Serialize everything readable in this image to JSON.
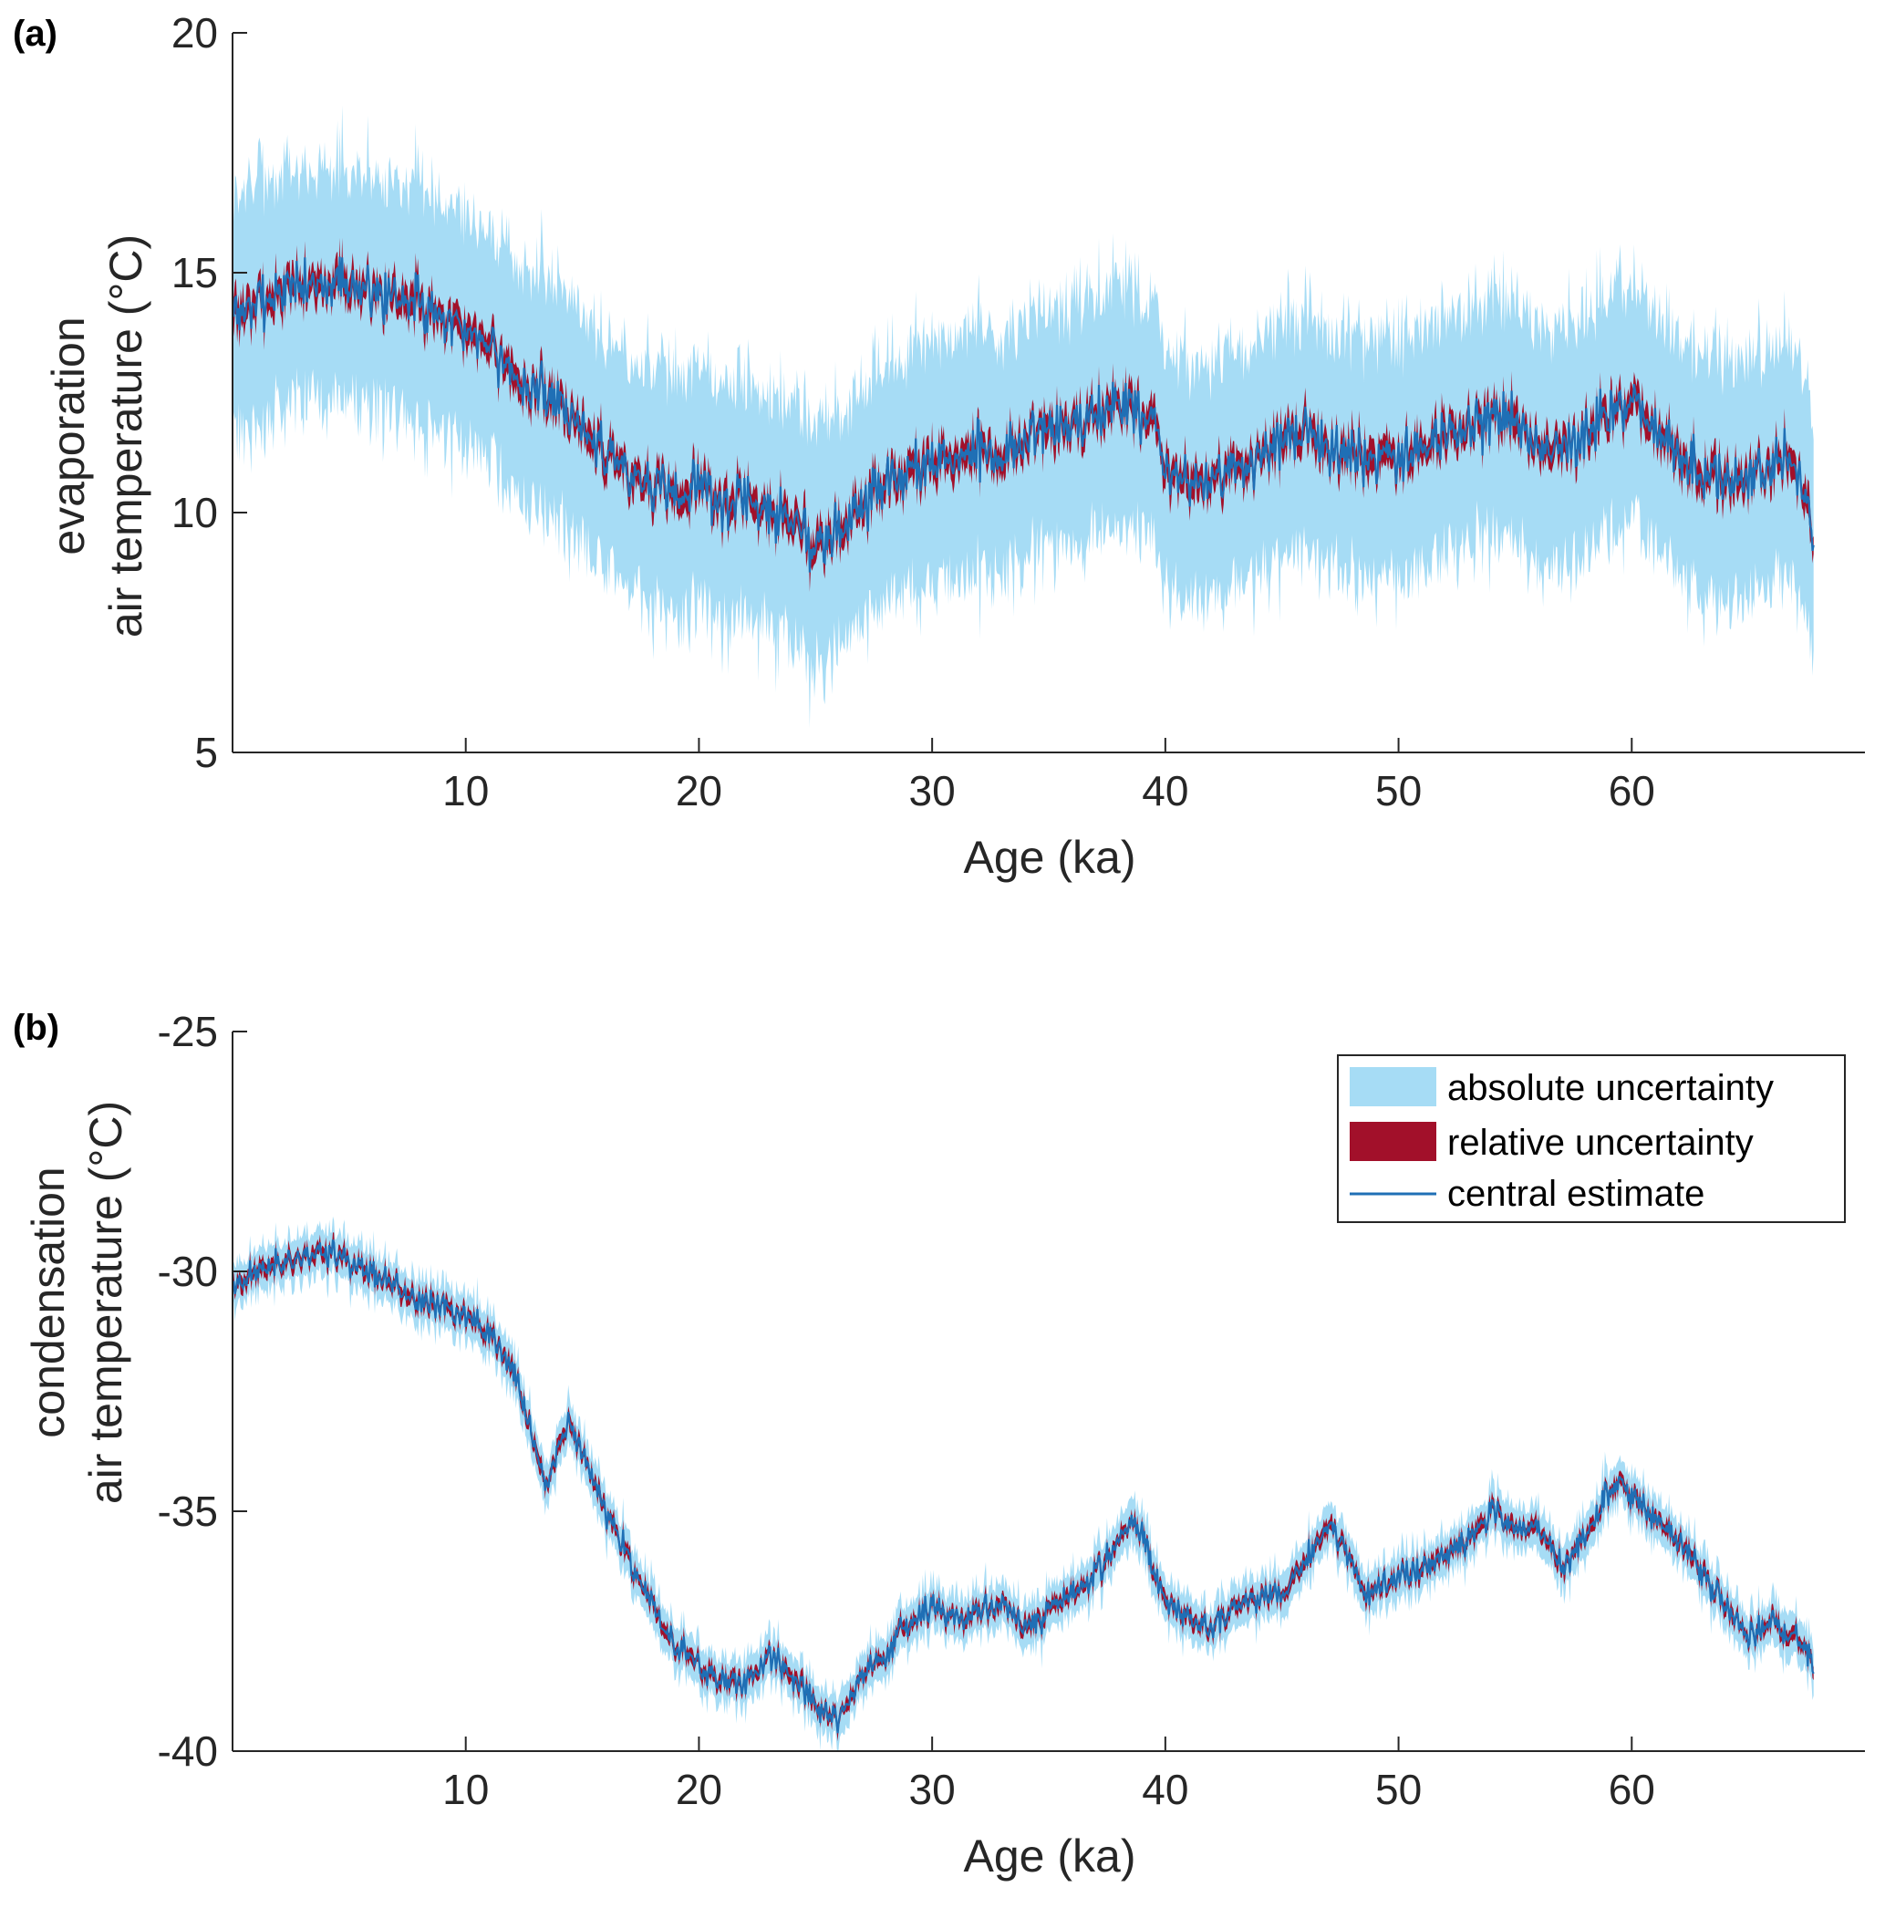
{
  "chart_data": [
    {
      "type": "area",
      "panel_label": "(a)",
      "xlabel": "Age (ka)",
      "ylabel_lines": [
        "evaporation",
        "air temperature (°C)"
      ],
      "xlim": [
        0,
        70
      ],
      "ylim": [
        5,
        20
      ],
      "xticks": [
        10,
        20,
        30,
        40,
        50,
        60
      ],
      "yticks": [
        5,
        10,
        15,
        20
      ],
      "abs_halfwidth": 2.3,
      "rel_halfwidth": 0.3,
      "noise": 0.35,
      "x": [
        0,
        2,
        4,
        6,
        8,
        10,
        11,
        12,
        13,
        14,
        15,
        16,
        17,
        18,
        19,
        20,
        21,
        22,
        23,
        24,
        25,
        26,
        27,
        28,
        29,
        30,
        31,
        32,
        33,
        34,
        35,
        36,
        37,
        38,
        39,
        39.5,
        40,
        41,
        42,
        43,
        44,
        45,
        46,
        47,
        48,
        49,
        50,
        51,
        52,
        53,
        54,
        55,
        56,
        57,
        58,
        59,
        60,
        61,
        62,
        63,
        64,
        65,
        66,
        67,
        67.8
      ],
      "series": [
        {
          "name": "central estimate",
          "values": [
            14.2,
            14.6,
            14.8,
            14.6,
            14.4,
            13.8,
            13.6,
            12.8,
            12.5,
            12.4,
            11.8,
            11.2,
            10.8,
            10.6,
            10.4,
            10.6,
            10.2,
            10.3,
            10.1,
            9.8,
            9.4,
            9.6,
            10.2,
            10.6,
            10.8,
            11.0,
            11.2,
            11.3,
            11.1,
            11.5,
            11.8,
            11.7,
            12.0,
            12.3,
            12.1,
            11.9,
            10.8,
            10.6,
            10.5,
            10.9,
            11.2,
            11.4,
            11.6,
            11.3,
            11.2,
            11.0,
            11.1,
            11.4,
            11.6,
            11.9,
            12.0,
            11.8,
            11.5,
            11.2,
            11.6,
            12.0,
            12.3,
            11.8,
            11.2,
            10.8,
            10.6,
            10.7,
            11.0,
            11.2,
            9.6
          ]
        }
      ]
    },
    {
      "type": "area",
      "panel_label": "(b)",
      "xlabel": "Age (ka)",
      "ylabel_lines": [
        "condensation",
        "air temperature (°C)"
      ],
      "xlim": [
        0,
        70
      ],
      "ylim": [
        -40,
        -25
      ],
      "xticks": [
        10,
        20,
        30,
        40,
        50,
        60
      ],
      "yticks": [
        -40,
        -35,
        -30,
        -25
      ],
      "abs_halfwidth": 0.4,
      "rel_halfwidth": 0.15,
      "noise": 0.18,
      "x": [
        0,
        1,
        2,
        3,
        4,
        5,
        6,
        7,
        8,
        9,
        10,
        11,
        12,
        12.5,
        13,
        13.5,
        14,
        14.5,
        15,
        16,
        17,
        18,
        19,
        20,
        21,
        22,
        23,
        24,
        25,
        26,
        27,
        28,
        29,
        30,
        31,
        32,
        33,
        34,
        35,
        36,
        37,
        38,
        38.5,
        39,
        40,
        41,
        42,
        43,
        44,
        45,
        46,
        47,
        48,
        48.5,
        49,
        50,
        51,
        52,
        53,
        54,
        55,
        56,
        57,
        58,
        59,
        59.5,
        60,
        61,
        62,
        63,
        64,
        65,
        66,
        67,
        67.8
      ],
      "series": [
        {
          "name": "central estimate",
          "values": [
            -30.3,
            -30.0,
            -29.8,
            -29.7,
            -29.5,
            -29.8,
            -30.1,
            -30.3,
            -30.6,
            -30.8,
            -30.9,
            -31.3,
            -32.0,
            -32.8,
            -33.8,
            -34.4,
            -33.5,
            -33.2,
            -33.8,
            -35.0,
            -36.0,
            -37.0,
            -37.8,
            -38.2,
            -38.5,
            -38.6,
            -38.0,
            -38.4,
            -39.0,
            -39.3,
            -38.4,
            -38.0,
            -37.3,
            -37.0,
            -37.3,
            -37.1,
            -36.9,
            -37.5,
            -37.1,
            -36.7,
            -36.3,
            -35.6,
            -35.1,
            -35.5,
            -36.9,
            -37.2,
            -37.5,
            -37.0,
            -36.8,
            -36.7,
            -36.1,
            -35.2,
            -36.0,
            -36.8,
            -36.6,
            -36.4,
            -36.2,
            -35.9,
            -35.5,
            -35.0,
            -35.3,
            -35.4,
            -36.1,
            -35.6,
            -34.6,
            -34.3,
            -34.7,
            -35.1,
            -35.6,
            -36.3,
            -37.0,
            -37.6,
            -37.4,
            -37.5,
            -38.2
          ]
        }
      ]
    }
  ],
  "legend": {
    "items": [
      {
        "label": "absolute uncertainty",
        "color": "#a6dcf5"
      },
      {
        "label": "relative uncertainty",
        "color": "#a2102a"
      },
      {
        "label": "central estimate",
        "color": "#1f6fb5"
      }
    ]
  },
  "colors": {
    "absolute": "#a6dcf5",
    "relative": "#a2102a",
    "central": "#1f6fb5",
    "axis": "#262626"
  }
}
